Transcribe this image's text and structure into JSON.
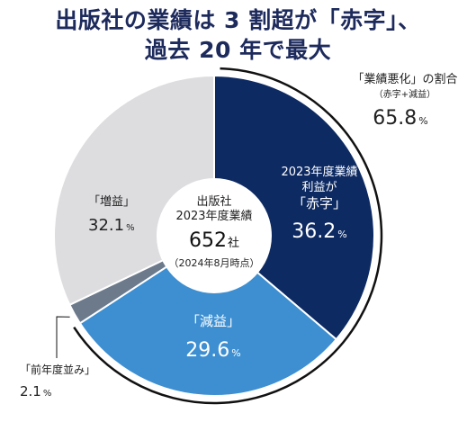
{
  "title": {
    "line1": "出版社の業績は 3 割超が「赤字」、",
    "line2": "過去 20 年で最大"
  },
  "chart_data": {
    "type": "pie",
    "title": "出版社の業績は 3 割超が「赤字」、過去 20 年で最大",
    "center": {
      "line1": "出版社",
      "line2": "2023年度業績",
      "count": "652",
      "count_unit": "社",
      "note": "（2024年8月時点）"
    },
    "slices": [
      {
        "key": "deficit",
        "label_lines": [
          "2023年度業績",
          "利益が",
          "「赤字」"
        ],
        "value": 36.2,
        "value_text": "36.2",
        "color": "#0d2a63"
      },
      {
        "key": "decrease",
        "label_lines": [
          "「減益」"
        ],
        "value": 29.6,
        "value_text": "29.6",
        "color": "#3d8fd1"
      },
      {
        "key": "flat",
        "label_lines": [
          "「前年度並み」"
        ],
        "value": 2.1,
        "value_text": "2.1",
        "color": "#6c7a8c"
      },
      {
        "key": "increase",
        "label_lines": [
          "「増益」"
        ],
        "value": 32.1,
        "value_text": "32.1",
        "color": "#dddde0"
      }
    ],
    "unit": "%",
    "annotation": {
      "line1": "「業績悪化」の割合",
      "line2": "（赤字+減益）",
      "value_text": "65.8",
      "unit": "%"
    }
  }
}
